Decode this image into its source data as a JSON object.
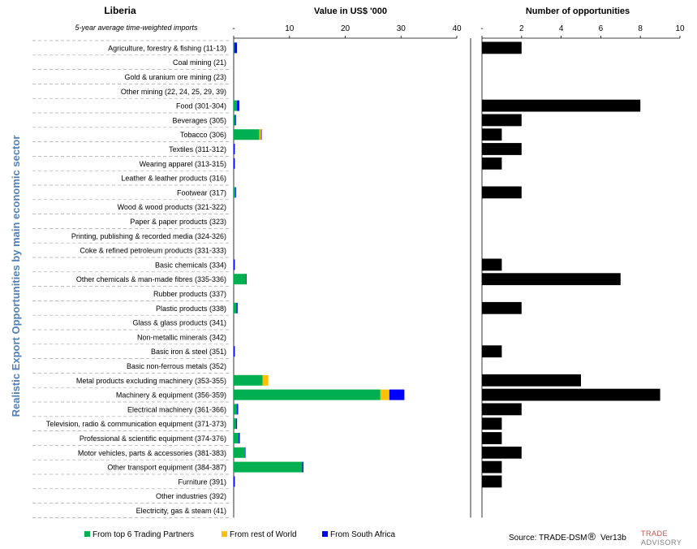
{
  "country": "Liberia",
  "left_subtitle": "5-year average time-weighted imports",
  "y_axis_title": "Realistic Export Opportunities by main economic sector",
  "chart_data": [
    {
      "type": "bar",
      "orientation": "horizontal",
      "stacked": true,
      "title": "Value in US$ '000",
      "xlim": [
        0,
        40
      ],
      "xticks": [
        "-",
        "10",
        "20",
        "30",
        "40"
      ],
      "categories": [
        "Agriculture, forestry & fishing (11-13)",
        "Coal mining (21)",
        "Gold & uranium ore mining (23)",
        "Other mining (22, 24, 25, 29, 39)",
        "Food (301-304)",
        "Beverages (305)",
        "Tobacco (306)",
        "Textiles (311-312)",
        "Wearing apparel (313-315)",
        "Leather & leather products (316)",
        "Footwear (317)",
        "Wood & wood products (321-322)",
        "Paper & paper products (323)",
        "Printing, publishing & recorded media (324-326)",
        "Coke & refined petroleum products (331-333)",
        "Basic chemicals (334)",
        "Other chemicals & man-made fibres (335-336)",
        "Rubber products (337)",
        "Plastic products (338)",
        "Glass & glass products (341)",
        "Non-metallic minerals (342)",
        "Basic iron & steel (351)",
        "Basic non-ferrous metals (352)",
        "Metal products excluding machinery (353-355)",
        "Machinery & equipment (356-359)",
        "Electrical machinery (361-366)",
        "Television, radio & communication equipment (371-373)",
        "Professional & scientific equipment (374-376)",
        "Motor vehicles, parts & accessories (381-383)",
        "Other transport equipment (384-387)",
        "Furniture (391)",
        "Other industries (392)",
        "Electricity, gas & steam (41)"
      ],
      "series": [
        {
          "name": "From top 6 Trading Partners",
          "color": "#00b050",
          "values": [
            0.1,
            0,
            0,
            0,
            0.6,
            0.2,
            4.6,
            0,
            0,
            0,
            0.3,
            0,
            0,
            0,
            0,
            0,
            2.2,
            0,
            0.5,
            0,
            0,
            0,
            0,
            5.2,
            26.3,
            0.6,
            0.4,
            0.9,
            2.0,
            12.3,
            0,
            0,
            0
          ]
        },
        {
          "name": "From rest of World",
          "color": "#ffc000",
          "values": [
            0,
            0,
            0,
            0,
            0,
            0,
            0.3,
            0,
            0,
            0,
            0,
            0,
            0,
            0,
            0,
            0,
            0,
            0,
            0,
            0,
            0,
            0,
            0,
            1.0,
            1.6,
            0,
            0,
            0,
            0,
            0,
            0,
            0,
            0
          ]
        },
        {
          "name": "From South Africa",
          "color": "#0000ff",
          "values": [
            0.5,
            0,
            0,
            0,
            0.4,
            0.2,
            0.1,
            0.2,
            0.2,
            0,
            0.1,
            0,
            0,
            0,
            0,
            0.2,
            0.1,
            0,
            0.2,
            0,
            0,
            0.2,
            0,
            0,
            2.7,
            0.2,
            0.2,
            0.2,
            0.1,
            0.2,
            0.2,
            0,
            0
          ]
        }
      ],
      "legend_position": "bottom"
    },
    {
      "type": "bar",
      "orientation": "horizontal",
      "title": "Number of opportunities",
      "xlim": [
        0,
        10
      ],
      "xticks": [
        "-",
        "2",
        "4",
        "6",
        "8",
        "10"
      ],
      "series": [
        {
          "color": "#000000",
          "values": [
            2,
            0,
            0,
            0,
            8,
            2,
            1,
            2,
            1,
            0,
            2,
            0,
            0,
            0,
            0,
            1,
            7,
            0,
            2,
            0,
            0,
            1,
            0,
            5,
            9,
            2,
            1,
            1,
            2,
            1,
            1,
            0,
            0
          ]
        }
      ]
    }
  ],
  "source": {
    "text": "Source: TRADE-DSM",
    "mark": "®",
    "version": "Ver13b"
  },
  "logo": {
    "line1": "TRADE",
    "line2": "ADVISORY",
    "color1": "#c0504d",
    "color2": "#7f7f7f"
  },
  "colors": {
    "axis_title": "#4f81bd"
  }
}
